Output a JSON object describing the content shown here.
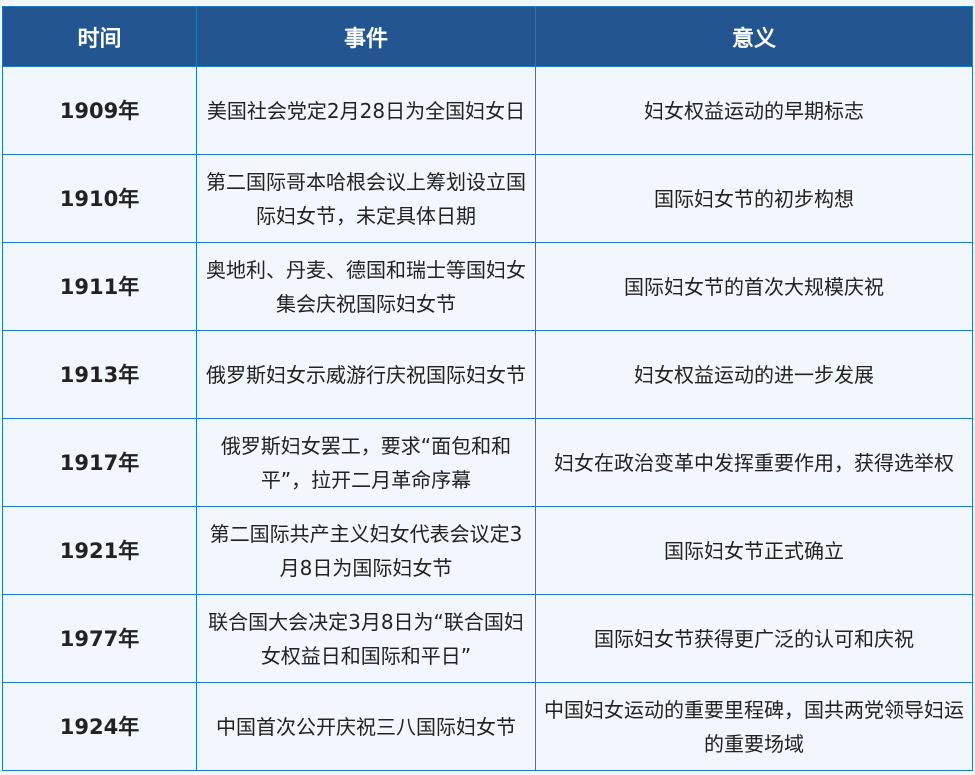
{
  "headers": [
    "时间",
    "事件",
    "意义"
  ],
  "rows": [
    {
      "year": "1909年",
      "event": "美国社会党定2月28日为全国妇女日",
      "meaning": "妇女权益运动的早期标志"
    },
    {
      "year": "1910年",
      "event": "第二国际哥本哈根会议上筹划设立国际妇女节，未定具体日期",
      "meaning": "国际妇女节的初步构想"
    },
    {
      "year": "1911年",
      "event": "奥地利、丹麦、德国和瑞士等国妇女集会庆祝国际妇女节",
      "meaning": "国际妇女节的首次大规模庆祝"
    },
    {
      "year": "1913年",
      "event": "俄罗斯妇女示威游行庆祝国际妇女节",
      "meaning": "妇女权益运动的进一步发展"
    },
    {
      "year": "1917年",
      "event": "俄罗斯妇女罢工，要求“面包和和平”，拉开二月革命序幕",
      "meaning": "妇女在政治变革中发挥重要作用，获得选举权"
    },
    {
      "year": "1921年",
      "event": "第二国际共产主义妇女代表会议定3月8日为国际妇女节",
      "meaning": "国际妇女节正式确立"
    },
    {
      "year": "1977年",
      "event": "联合国大会决定3月8日为“联合国妇女权益日和国际和平日”",
      "meaning": "国际妇女节获得更广泛的认可和庆祝"
    },
    {
      "year": "1924年",
      "event": "中国首次公开庆祝三八国际妇女节",
      "meaning": "中国妇女运动的重要里程碑，国共两党领导妇运的重要场域"
    }
  ],
  "colors": {
    "header_bg": "#235691",
    "border": "#1f7ac4",
    "body_bg": "#f2f6fd"
  }
}
